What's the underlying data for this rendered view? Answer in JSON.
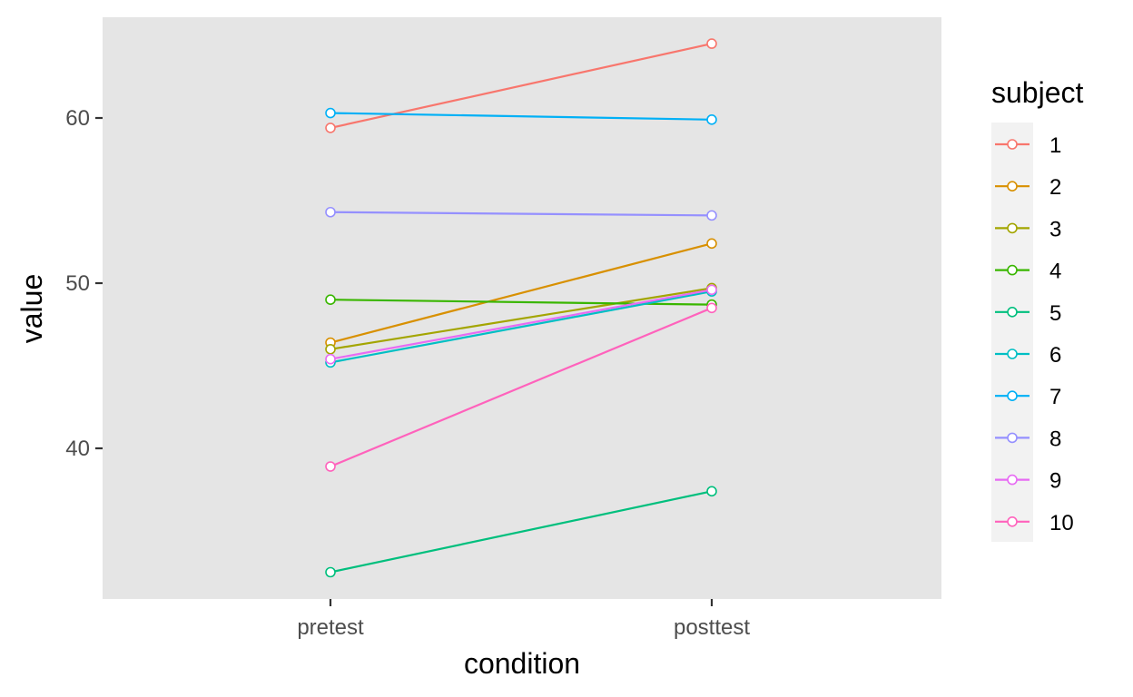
{
  "chart_data": {
    "type": "line",
    "xlabel": "condition",
    "ylabel": "value",
    "categories": [
      "pretest",
      "posttest"
    ],
    "ylim": [
      31,
      66
    ],
    "yticks": [
      40,
      50,
      60
    ],
    "ytick_labels": [
      "40",
      "50",
      "60"
    ],
    "grid": false,
    "legend": {
      "title": "subject",
      "placement": "right"
    },
    "series": [
      {
        "name": "1",
        "color": "#F8766D",
        "values": [
          59.4,
          64.5
        ]
      },
      {
        "name": "2",
        "color": "#D89000",
        "values": [
          46.4,
          52.4
        ]
      },
      {
        "name": "3",
        "color": "#A3A500",
        "values": [
          46.0,
          49.7
        ]
      },
      {
        "name": "4",
        "color": "#39B600",
        "values": [
          49.0,
          48.7
        ]
      },
      {
        "name": "5",
        "color": "#00BF7D",
        "values": [
          32.5,
          37.4
        ]
      },
      {
        "name": "6",
        "color": "#00BFC4",
        "values": [
          45.2,
          49.5
        ]
      },
      {
        "name": "7",
        "color": "#00B0F6",
        "values": [
          60.3,
          59.9
        ]
      },
      {
        "name": "8",
        "color": "#9590FF",
        "values": [
          54.3,
          54.1
        ]
      },
      {
        "name": "9",
        "color": "#E76BF3",
        "values": [
          45.4,
          49.6
        ]
      },
      {
        "name": "10",
        "color": "#FF62BC",
        "values": [
          38.9,
          48.5
        ]
      }
    ]
  }
}
